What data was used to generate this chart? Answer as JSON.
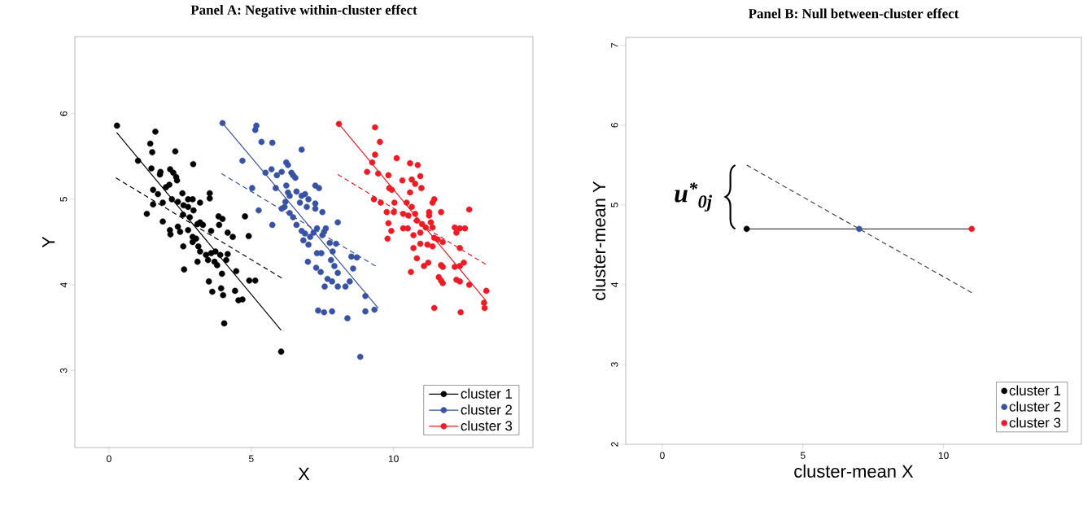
{
  "chart_data": [
    {
      "type": "scatter",
      "title": "Panel A: Negative within-cluster effect",
      "xlabel": "X",
      "ylabel": "Y",
      "xlim": [
        -1.2,
        14.9
      ],
      "ylim": [
        2.1,
        6.9
      ],
      "xticks": [
        0,
        5,
        10
      ],
      "yticks": [
        3,
        4,
        5,
        6
      ],
      "legend": "bottom right",
      "marker": "circle",
      "series": [
        {
          "name": "cluster 1",
          "color": "#000000",
          "x": [
            0.28,
            1.63,
            1.45,
            1.52,
            2.33,
            1.02,
            2.96,
            1.49,
            1.81,
            1.79,
            2.15,
            2.26,
            2.36,
            2.39,
            2.12,
            2.0,
            1.55,
            1.72,
            1.33,
            1.55,
            1.89,
            1.89,
            2.21,
            2.42,
            2.58,
            2.78,
            2.94,
            3.2,
            3.54,
            3.54,
            2.62,
            2.78,
            2.97,
            2.6,
            2.84,
            2.14,
            2.16,
            2.5,
            2.42,
            2.78,
            3.11,
            3.2,
            3.3,
            3.59,
            2.94,
            3.06,
            2.94,
            2.61,
            3.14,
            3.85,
            3.99,
            3.87,
            4.17,
            4.35,
            4.78,
            4.91,
            3.2,
            3.41,
            3.59,
            3.74,
            3.91,
            3.48,
            3.71,
            3.11,
            3.8,
            4.17,
            4.12,
            3.97,
            2.64,
            4.47,
            3.51,
            3.63,
            3.94,
            4.01,
            4.43,
            4.55,
            4.69,
            4.93,
            5.14,
            4.05,
            6.05
          ],
          "values": [
            5.86,
            5.79,
            5.65,
            5.55,
            5.56,
            5.45,
            5.41,
            5.36,
            5.32,
            5.29,
            5.35,
            5.31,
            5.26,
            5.22,
            5.17,
            5.14,
            5.11,
            5.06,
            4.83,
            4.94,
            4.96,
            4.74,
            5.0,
            4.97,
            5.07,
            5.0,
            5.0,
            4.96,
            5.07,
            5.01,
            4.93,
            4.91,
            4.87,
            4.82,
            4.79,
            4.64,
            4.59,
            4.62,
            4.68,
            4.64,
            4.71,
            4.73,
            4.7,
            4.63,
            4.56,
            4.54,
            4.5,
            4.45,
            4.45,
            4.8,
            4.77,
            4.7,
            4.61,
            4.56,
            4.8,
            4.57,
            4.39,
            4.35,
            4.37,
            4.39,
            4.35,
            4.29,
            4.27,
            4.27,
            4.23,
            4.36,
            4.29,
            4.13,
            4.18,
            4.16,
            4.04,
            3.92,
            3.96,
            3.88,
            3.93,
            3.82,
            3.83,
            4.05,
            4.05,
            3.55,
            3.22
          ]
        },
        {
          "name": "cluster 2",
          "color": "#3953a4",
          "x": [
            3.99,
            5.18,
            5.14,
            5.36,
            5.74,
            6.77,
            4.69,
            5.5,
            5.71,
            6.07,
            6.23,
            6.29,
            6.41,
            6.47,
            6.55,
            5.03,
            5.26,
            5.9,
            5.86,
            6.23,
            6.29,
            6.35,
            6.2,
            6.17,
            6.07,
            5.74,
            6.59,
            6.77,
            6.89,
            7.01,
            6.71,
            6.95,
            7.25,
            7.38,
            7.25,
            7.25,
            7.5,
            6.35,
            6.47,
            6.59,
            6.77,
            6.89,
            7.19,
            7.07,
            6.83,
            7.01,
            7.31,
            7.56,
            7.62,
            8.04,
            7.5,
            7.76,
            7.98,
            7.86,
            7.31,
            7.46,
            6.99,
            7.28,
            7.44,
            7.8,
            7.92,
            8.04,
            7.68,
            7.84,
            8.04,
            8.31,
            8.46,
            8.58,
            8.52,
            8.71,
            7.58,
            9.01,
            7.35,
            7.56,
            7.84,
            8.38,
            9.01,
            9.33,
            8.83
          ],
          "values": [
            5.89,
            5.86,
            5.81,
            5.67,
            5.66,
            5.58,
            5.45,
            5.31,
            5.35,
            5.32,
            5.43,
            5.4,
            5.31,
            5.28,
            5.25,
            5.13,
            4.87,
            5.28,
            5.13,
            5.16,
            5.08,
            5.04,
            4.97,
            4.91,
            4.89,
            4.7,
            5.09,
            5.04,
            5.06,
            5.0,
            4.96,
            4.91,
            5.16,
            5.13,
            4.95,
            4.89,
            4.85,
            4.84,
            4.79,
            4.7,
            4.63,
            4.6,
            4.61,
            4.56,
            4.52,
            4.47,
            4.66,
            4.62,
            4.66,
            4.73,
            4.58,
            4.49,
            4.48,
            4.39,
            4.37,
            4.37,
            4.27,
            4.2,
            4.15,
            4.29,
            4.22,
            4.14,
            4.07,
            4.04,
            3.98,
            3.98,
            4.04,
            4.19,
            4.33,
            4.32,
            3.98,
            3.87,
            3.7,
            3.68,
            3.69,
            3.61,
            3.69,
            3.71,
            3.16
          ]
        },
        {
          "name": "cluster 3",
          "color": "#ed1c24",
          "x": [
            8.08,
            9.35,
            9.52,
            9.35,
            9.25,
            9.07,
            9.46,
            10.11,
            10.58,
            10.85,
            9.82,
            10.31,
            10.64,
            10.94,
            10.76,
            10.98,
            10.58,
            9.85,
            9.94,
            9.31,
            9.55,
            10.03,
            9.76,
            10.01,
            10.46,
            10.34,
            10.52,
            10.64,
            10.76,
            10.82,
            11.0,
            11.25,
            11.25,
            11.43,
            11.37,
            11.67,
            12.66,
            9.82,
            9.92,
            9.79,
            10.34,
            10.5,
            10.7,
            10.94,
            11.13,
            11.31,
            11.37,
            11.19,
            11.37,
            10.94,
            10.7,
            10.82,
            10.61,
            11.07,
            11.22,
            11.43,
            11.55,
            11.73,
            11.67,
            11.73,
            11.59,
            11.67,
            11.73,
            12.15,
            12.33,
            12.51,
            12.21,
            12.33,
            12.15,
            12.33,
            12.47,
            12.21,
            12.33,
            12.66,
            13.26,
            13.18,
            13.2,
            11.43,
            12.36
          ],
          "values": [
            5.88,
            5.84,
            5.67,
            5.52,
            5.43,
            5.32,
            5.3,
            5.48,
            5.42,
            5.4,
            5.28,
            5.22,
            5.23,
            5.27,
            5.18,
            5.13,
            5.08,
            5.13,
            5.11,
            5.0,
            4.96,
            4.96,
            4.85,
            4.85,
            4.96,
            4.83,
            4.81,
            4.91,
            4.83,
            4.75,
            4.71,
            4.85,
            4.81,
            5.0,
            4.96,
            4.85,
            4.88,
            4.72,
            4.63,
            4.54,
            4.66,
            4.66,
            4.58,
            4.61,
            4.67,
            4.73,
            4.67,
            4.47,
            4.45,
            4.48,
            4.43,
            4.31,
            4.15,
            4.22,
            4.26,
            4.55,
            4.53,
            4.5,
            4.23,
            4.21,
            4.09,
            4.05,
            4.02,
            4.67,
            4.66,
            4.66,
            4.61,
            4.43,
            4.21,
            4.22,
            4.26,
            4.06,
            4.04,
            4.0,
            3.93,
            3.79,
            3.73,
            3.73,
            3.68
          ]
        },
        {
          "type": "line",
          "color": "#000000",
          "x": [
            0.27,
            6.05
          ],
          "values": [
            5.78,
            3.47
          ],
          "line_style": "solid",
          "marker": "none"
        },
        {
          "type": "line",
          "color": "#000000",
          "x": [
            0.24,
            6.07
          ],
          "values": [
            5.25,
            4.08
          ],
          "line_style": "dashed",
          "marker": "none"
        },
        {
          "type": "line",
          "color": "#3953a4",
          "x": [
            3.99,
            9.46
          ],
          "values": [
            5.89,
            3.73
          ],
          "line_style": "solid",
          "marker": "none"
        },
        {
          "type": "line",
          "color": "#3953a4",
          "x": [
            3.95,
            9.37
          ],
          "values": [
            5.3,
            4.22
          ],
          "line_style": "dashed",
          "marker": "none"
        },
        {
          "type": "line",
          "color": "#ed1c24",
          "x": [
            8.08,
            13.24
          ],
          "values": [
            5.88,
            3.82
          ],
          "line_style": "solid",
          "marker": "none"
        },
        {
          "type": "line",
          "color": "#ed1c24",
          "x": [
            8.04,
            13.24
          ],
          "values": [
            5.29,
            4.24
          ],
          "line_style": "dashed",
          "marker": "none"
        }
      ]
    },
    {
      "type": "scatter",
      "title": "Panel B: Null between-cluster effect",
      "xlabel": "cluster-mean X",
      "ylabel": "cluster-mean Y",
      "xlim": [
        -1.3,
        14.9
      ],
      "ylim": [
        2,
        7.1
      ],
      "xticks": [
        0,
        5,
        10
      ],
      "yticks": [
        2,
        3,
        4,
        5,
        6,
        7
      ],
      "legend": "bottom right",
      "marker": "circle",
      "annotations": [
        "u$^{*}$$_{0j}$"
      ],
      "series": [
        {
          "type": "line",
          "color": "#444444",
          "x": [
            3,
            7,
            11
          ],
          "values": [
            4.7,
            4.7,
            4.7
          ],
          "line_style": "solid",
          "marker": "none"
        },
        {
          "type": "line",
          "color": "#444444",
          "x": [
            3,
            11
          ],
          "values": [
            5.5,
            3.9
          ],
          "line_style": "dashed",
          "marker": "none"
        },
        {
          "name": "cluster 1",
          "color": "#000000",
          "x": [
            3
          ],
          "values": [
            4.7
          ]
        },
        {
          "name": "cluster 2",
          "color": "#3953a4",
          "x": [
            7
          ],
          "values": [
            4.7
          ]
        },
        {
          "name": "cluster 3",
          "color": "#ed1c24",
          "x": [
            11
          ],
          "values": [
            4.7
          ]
        }
      ]
    }
  ]
}
